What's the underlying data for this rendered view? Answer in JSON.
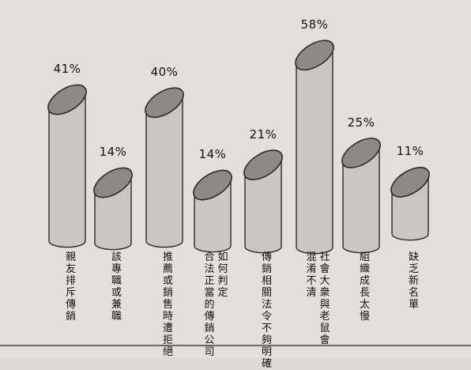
{
  "chart_data": {
    "type": "bar",
    "categories": [
      "親友排斥傳銷",
      "該專職或兼職",
      "推薦或銷售時遭拒絕",
      "如何判定合法正當的傳銷公司",
      "傳銷相關法令不夠明確",
      "社會大衆與老鼠會混淆不清",
      "組織成長太慢",
      "缺乏新名單"
    ],
    "category_lines": [
      [
        "親友排斥傳銷"
      ],
      [
        "該專職或兼職"
      ],
      [
        "推薦或銷售時遭拒絕"
      ],
      [
        "如何判定",
        "合法正當的傳銷公司"
      ],
      [
        "傳銷相關法令不夠明確"
      ],
      [
        "社會大衆與老鼠會",
        "混淆不清"
      ],
      [
        "組織成長太慢"
      ],
      [
        "缺乏新名單"
      ]
    ],
    "values": [
      41,
      14,
      40,
      14,
      21,
      58,
      25,
      11
    ],
    "value_labels": [
      "41%",
      "14%",
      "40%",
      "14%",
      "21%",
      "58%",
      "25%",
      "11%"
    ],
    "title": "",
    "xlabel": "",
    "ylabel": "",
    "ylim": [
      0,
      60
    ],
    "grid": false,
    "colors": {
      "body": "#c9c6c3",
      "top": "#8c8986",
      "outline": "#2b2b2b"
    }
  }
}
